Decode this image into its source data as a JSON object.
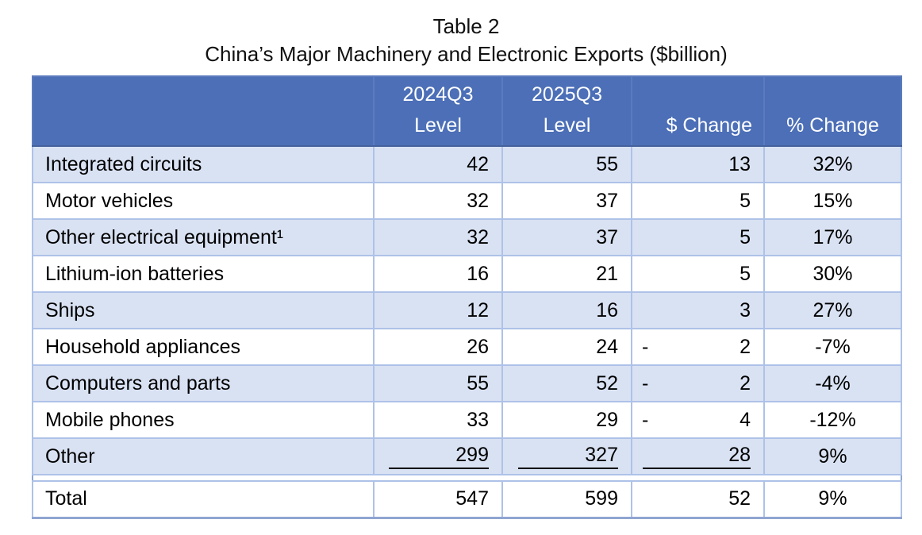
{
  "title": {
    "line1": "Table 2",
    "line2": "China’s Major Machinery and Electronic Exports ($billion)"
  },
  "table": {
    "header": {
      "rowlabel": "",
      "col_2024": {
        "line1": "2024Q3",
        "line2": "Level"
      },
      "col_2025": {
        "line1": "2025Q3",
        "line2": "Level"
      },
      "col_dollar": "$ Change",
      "col_pct": "% Change"
    },
    "rows": [
      {
        "label": "Integrated circuits",
        "v2024": "42",
        "v2025": "55",
        "chg_sign": "",
        "chg": "13",
        "pct": "32%"
      },
      {
        "label": "Motor vehicles",
        "v2024": "32",
        "v2025": "37",
        "chg_sign": "",
        "chg": "5",
        "pct": "15%"
      },
      {
        "label": "Other electrical equipment¹",
        "v2024": "32",
        "v2025": "37",
        "chg_sign": "",
        "chg": "5",
        "pct": "17%"
      },
      {
        "label": "Lithium-ion batteries",
        "v2024": "16",
        "v2025": "21",
        "chg_sign": "",
        "chg": "5",
        "pct": "30%"
      },
      {
        "label": "Ships",
        "v2024": "12",
        "v2025": "16",
        "chg_sign": "",
        "chg": "3",
        "pct": "27%"
      },
      {
        "label": "Household appliances",
        "v2024": "26",
        "v2025": "24",
        "chg_sign": "-",
        "chg": "2",
        "pct": "-7%"
      },
      {
        "label": "Computers and parts",
        "v2024": "55",
        "v2025": "52",
        "chg_sign": "-",
        "chg": "2",
        "pct": "-4%"
      },
      {
        "label": "Mobile phones",
        "v2024": "33",
        "v2025": "29",
        "chg_sign": "-",
        "chg": "4",
        "pct": "-12%"
      },
      {
        "label": "Other",
        "v2024": "299",
        "v2025": "327",
        "chg_sign": "",
        "chg": "28",
        "pct": "9%"
      },
      {
        "label": "Total",
        "v2024": "547",
        "v2025": "599",
        "chg_sign": "",
        "chg": "52",
        "pct": "9%"
      }
    ]
  },
  "colors": {
    "header_bg": "#4C6FB7",
    "header_text": "#FFFFFF",
    "row_shade": "#D9E2F3",
    "row_white": "#FFFFFF",
    "grid_line": "#AEC2E8",
    "outer_border": "#8FA5D2",
    "body_text": "#000000"
  }
}
